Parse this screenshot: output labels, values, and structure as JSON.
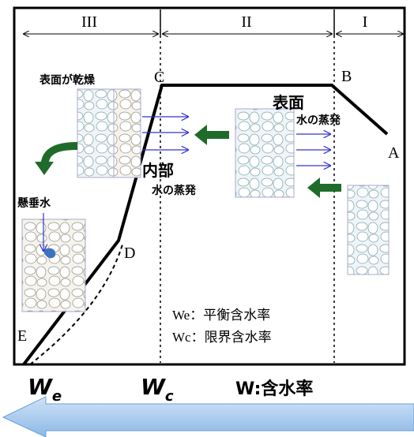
{
  "regions": [
    "III",
    "II",
    "I"
  ],
  "points": {
    "A": "A",
    "B": "B",
    "C": "C",
    "D": "D",
    "E": "E"
  },
  "annotations": {
    "surface_dry": "表面が乾燥",
    "surface": "表面",
    "surface_evap": "水の蒸発",
    "internal": "内部",
    "internal_evap": "水の蒸発",
    "pendular": "懸垂水"
  },
  "legend": [
    "We：平衡含水率",
    "Wc：限界含水率"
  ],
  "axis": {
    "we": {
      "main": "W",
      "sub": "e"
    },
    "wc": {
      "main": "W",
      "sub": "c"
    },
    "label": "W:含水率"
  }
}
